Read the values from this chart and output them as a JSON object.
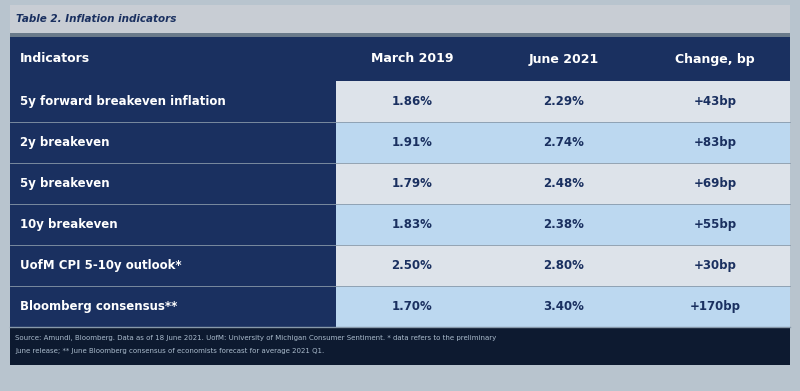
{
  "title": "Table 2. Inflation indicators",
  "title_color": "#1a3060",
  "title_bg": "#c8cdd4",
  "header_bg": "#1a3060",
  "header_text_color": "#ffffff",
  "col1_bg": "#1a3060",
  "col1_text_color": "#ffffff",
  "row_bg_light": "#dde3ea",
  "row_bg_highlight": "#bcd8f0",
  "separator_color": "#8899aa",
  "columns": [
    "Indicators",
    "March 2019",
    "June 2021",
    "Change, bp"
  ],
  "rows": [
    [
      "5y forward breakeven inflation",
      "1.86%",
      "2.29%",
      "+43bp"
    ],
    [
      "2y breakeven",
      "1.91%",
      "2.74%",
      "+83bp"
    ],
    [
      "5y breakeven",
      "1.79%",
      "2.48%",
      "+69bp"
    ],
    [
      "10y breakeven",
      "1.83%",
      "2.38%",
      "+55bp"
    ],
    [
      "UofM CPI 5-10y outlook*",
      "2.50%",
      "2.80%",
      "+30bp"
    ],
    [
      "Bloomberg consensus**",
      "1.70%",
      "3.40%",
      "+170bp"
    ]
  ],
  "row_highlight": [
    false,
    true,
    false,
    true,
    false,
    true
  ],
  "footnote_line1": "Source: Amundi, Bloomberg. Data as of 18 June 2021. UofM: University of Michigan Consumer Sentiment. * data refers to the preliminary",
  "footnote_line2": "June release; ** June Bloomberg consensus of economists forecast for average 2021 Q1.",
  "footnote_color": "#aabbcc",
  "footnote_bg": "#0d1a30",
  "outer_bg": "#b8c4ce",
  "fig_width": 8.0,
  "fig_height": 3.91,
  "dpi": 100
}
